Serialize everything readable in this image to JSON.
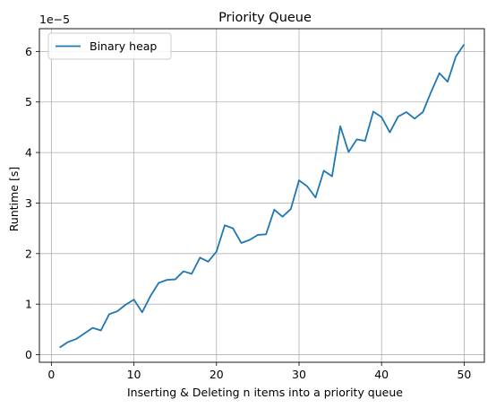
{
  "chart_data": {
    "type": "line",
    "title": "Priority Queue",
    "xlabel": "Inserting & Deleting n items into a priority queue",
    "ylabel": "Runtime [s]",
    "y_offset_label": "1e−5",
    "xlim": [
      -1.45,
      52.45
    ],
    "ylim": [
      -0.15,
      6.45
    ],
    "xticks": [
      0,
      10,
      20,
      30,
      40,
      50
    ],
    "yticks": [
      0,
      1,
      2,
      3,
      4,
      5,
      6
    ],
    "grid": true,
    "legend_position": "top-left",
    "series": [
      {
        "name": "Binary heap",
        "color": "#1f77b4",
        "x": [
          1,
          2,
          3,
          4,
          5,
          6,
          7,
          8,
          9,
          10,
          11,
          12,
          13,
          14,
          15,
          16,
          17,
          18,
          19,
          20,
          21,
          22,
          23,
          24,
          25,
          26,
          27,
          28,
          29,
          30,
          31,
          32,
          33,
          34,
          35,
          36,
          37,
          38,
          39,
          40,
          41,
          42,
          43,
          44,
          45,
          46,
          47,
          48,
          49,
          50
        ],
        "y": [
          0.14,
          0.25,
          0.31,
          0.42,
          0.53,
          0.48,
          0.8,
          0.86,
          0.99,
          1.09,
          0.84,
          1.16,
          1.42,
          1.48,
          1.49,
          1.65,
          1.6,
          1.92,
          1.84,
          2.04,
          2.56,
          2.5,
          2.21,
          2.27,
          2.37,
          2.38,
          2.87,
          2.73,
          2.88,
          3.45,
          3.33,
          3.11,
          3.64,
          3.53,
          4.52,
          4.01,
          4.26,
          4.23,
          4.81,
          4.7,
          4.4,
          4.71,
          4.8,
          4.67,
          4.8,
          5.2,
          5.57,
          5.4,
          5.9,
          6.14
        ]
      }
    ]
  }
}
